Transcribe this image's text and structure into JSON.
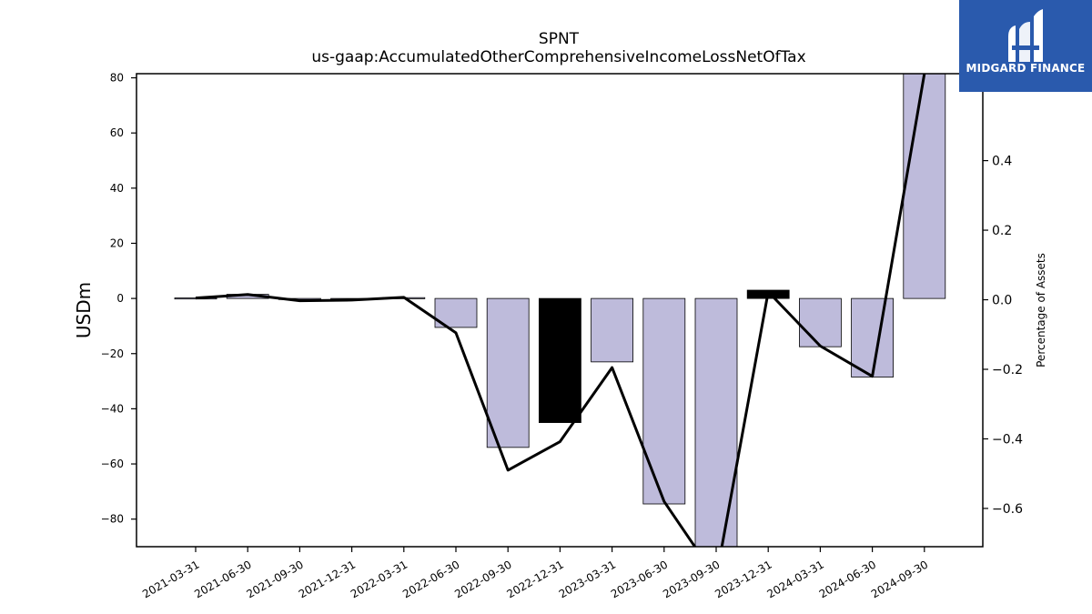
{
  "chart_data": {
    "type": "bar",
    "title": "SPNT",
    "subtitle": "us-gaap:AccumulatedOtherComprehensiveIncomeLossNetOfTax",
    "ylabel": "USDm",
    "y2label": "Percentage of Assets",
    "categories": [
      "2021-03-31",
      "2021-06-30",
      "2021-09-30",
      "2021-12-31",
      "2022-03-31",
      "2022-06-30",
      "2022-09-30",
      "2022-12-31",
      "2023-03-31",
      "2023-06-30",
      "2023-09-30",
      "2023-12-31",
      "2024-03-31",
      "2024-06-30",
      "2024-09-30"
    ],
    "values": [
      0.2,
      1.5,
      -0.3,
      -0.2,
      0.3,
      -10.5,
      -54,
      -45,
      -23,
      -74.5,
      -95,
      3,
      -17.5,
      -28.5,
      86
    ],
    "highlight_indices": [
      7,
      11
    ],
    "line_values": [
      0.005,
      0.015,
      -0.003,
      -0.001,
      0.007,
      -0.095,
      -0.49,
      -0.408,
      -0.195,
      -0.58,
      -0.8,
      0.023,
      -0.133,
      -0.22,
      0.65
    ],
    "ylim": [
      -90,
      81.5
    ],
    "y2lim": [
      -0.71,
      0.65
    ],
    "yticks": [
      -80,
      -60,
      -40,
      -20,
      0,
      20,
      40,
      60,
      80
    ],
    "y2ticks": [
      -0.6,
      -0.4,
      -0.2,
      0.0,
      0.2,
      0.4
    ],
    "colors": {
      "bar": "#bebbdb",
      "highlight": "#000000",
      "line": "#000000"
    }
  },
  "logo": {
    "text": "MIDGARD FINANCE",
    "background": "#2a5aad"
  }
}
